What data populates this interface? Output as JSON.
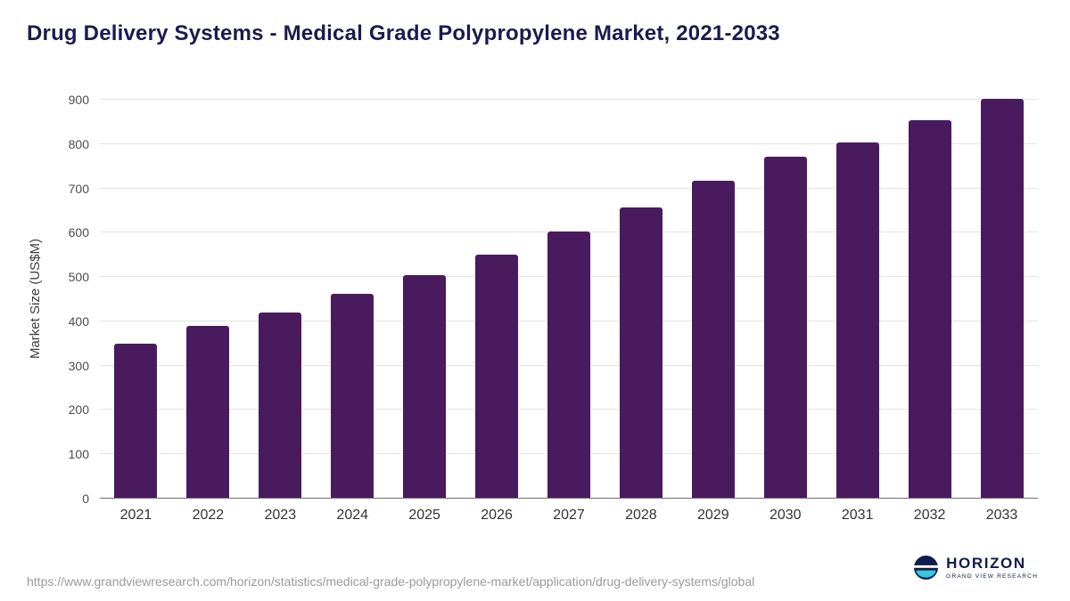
{
  "title": "Drug Delivery Systems - Medical Grade Polypropylene Market, 2021-2033",
  "footer": {
    "source_url": "https://www.grandviewresearch.com/horizon/statistics/medical-grade-polypropylene-market/application/drug-delivery-systems/global",
    "logo": {
      "name": "HORIZON",
      "subtitle": "GRAND VIEW RESEARCH"
    }
  },
  "colors": {
    "bar": "#4A1A5F",
    "title_navy": "#1B1B4D",
    "logo_navy": "#0F1C4D",
    "logo_teal": "#38C6E0",
    "gridline": "#e4e4e4"
  },
  "chart_data": {
    "type": "bar",
    "title": "Drug Delivery Systems - Medical Grade Polypropylene Market, 2021-2033",
    "categories": [
      "2021",
      "2022",
      "2023",
      "2024",
      "2025",
      "2026",
      "2027",
      "2028",
      "2029",
      "2030",
      "2031",
      "2032",
      "2033"
    ],
    "values": [
      350,
      389,
      420,
      463,
      504,
      550,
      602,
      657,
      717,
      771,
      804,
      853,
      903
    ],
    "xlabel": "",
    "ylabel": "Market Size (US$M)",
    "ylim": [
      0,
      900
    ],
    "ytick_interval": 100,
    "yticks": [
      0,
      100,
      200,
      300,
      400,
      500,
      600,
      700,
      800,
      900
    ],
    "grid": "horizontal",
    "legend": "none",
    "bar_color": "#4A1A5F"
  }
}
